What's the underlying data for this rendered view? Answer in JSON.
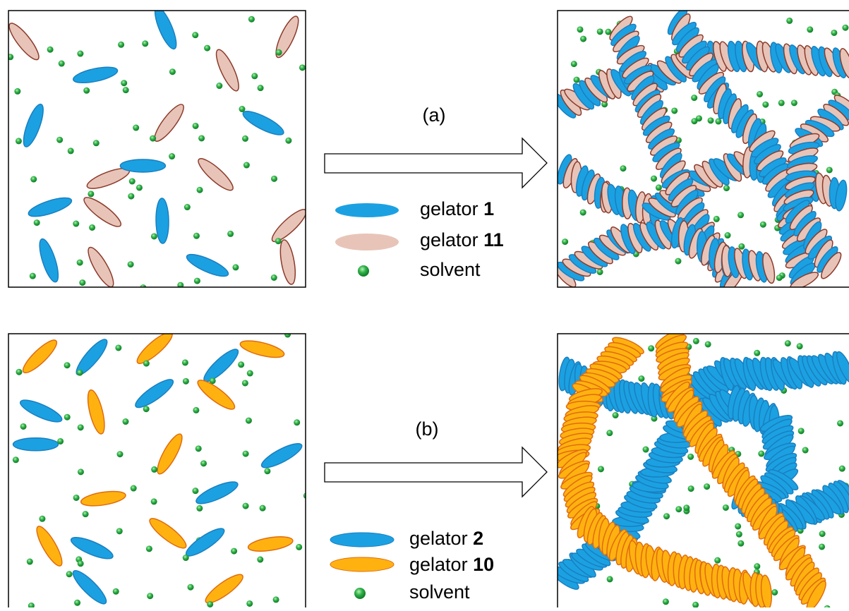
{
  "panels": [
    {
      "label": "(a)",
      "legend": [
        {
          "text": "gelator",
          "number": "1"
        },
        {
          "text": "gelator",
          "number": "11"
        },
        {
          "text": "solvent"
        }
      ]
    },
    {
      "label": "(b)",
      "legend": [
        {
          "text": "gelator",
          "number": "2"
        },
        {
          "text": "gelator",
          "number": "10"
        },
        {
          "text": "solvent"
        }
      ]
    }
  ]
}
